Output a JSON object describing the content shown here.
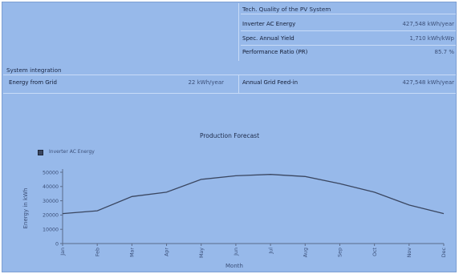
{
  "tech_quality": {
    "title": "Tech. Quality of the PV System",
    "rows": [
      {
        "label": "Inverter AC Energy",
        "value": "427,548 kWh/year"
      },
      {
        "label": "Spec. Annual Yield",
        "value": "1,710 kWh/kWp"
      },
      {
        "label": "Performance Ratio (PR)",
        "value": "85.7 %"
      }
    ]
  },
  "system_integration": {
    "title": "System integration",
    "energy_from_grid_label": "Energy from Grid",
    "energy_from_grid_value": "22 kWh/year",
    "grid_feed_in_label": "Annual Grid Feed-in",
    "grid_feed_in_value": "427,548 kWh/year"
  },
  "colors": {
    "panel": "#97b9ea",
    "line": "#3a4660",
    "axis": "#5a6a8a"
  },
  "chart_data": {
    "type": "line",
    "title": "Production Forecast",
    "xlabel": "Month",
    "ylabel": "Energy in kWh",
    "categories": [
      "Jan",
      "Feb",
      "Mar",
      "Apr",
      "May",
      "Jun",
      "Jul",
      "Aug",
      "Sep",
      "Oct",
      "Nov",
      "Dec"
    ],
    "series": [
      {
        "name": "Inverter AC Energy",
        "values": [
          21000,
          23000,
          33000,
          36000,
          45000,
          47500,
          48500,
          47000,
          42000,
          36000,
          27000,
          21000
        ]
      }
    ],
    "ylim": [
      0,
      50000
    ],
    "yticks": [
      0,
      10000,
      20000,
      30000,
      40000,
      50000
    ],
    "legend": "top-left",
    "grid": false
  }
}
